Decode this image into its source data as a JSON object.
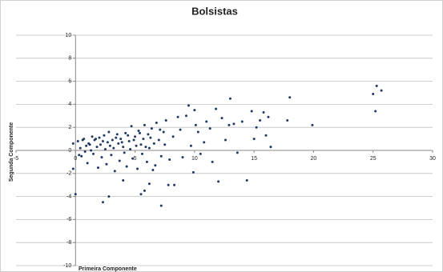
{
  "chart_data": {
    "type": "scatter",
    "title": "Bolsistas",
    "x_label": "Primeira Componente",
    "y_label": "Segunda Componente",
    "color": "#1f3864",
    "xlim": [
      -5,
      30
    ],
    "xticks": [
      -5,
      0,
      5,
      10,
      15,
      20,
      25,
      30
    ],
    "ylim": [
      -10,
      10
    ],
    "yticks": [
      -10,
      -8,
      -6,
      -4,
      -2,
      0,
      2,
      4,
      6,
      8,
      10
    ],
    "grid": true,
    "x": [
      0.2,
      0.4,
      0.5,
      0.7,
      0.9,
      1.0,
      1.1,
      1.3,
      1.4,
      1.5,
      1.6,
      1.8,
      1.9,
      2.0,
      2.1,
      2.2,
      2.4,
      2.5,
      2.6,
      2.7,
      2.8,
      3.0,
      3.1,
      3.2,
      3.3,
      3.5,
      3.6,
      3.7,
      3.8,
      4.0,
      4.1,
      4.2,
      4.3,
      4.5,
      4.6,
      4.7,
      4.8,
      5.0,
      5.1,
      5.2,
      5.3,
      5.5,
      5.6,
      5.7,
      5.8,
      6.0,
      6.1,
      6.2,
      6.4,
      6.5,
      6.6,
      6.8,
      7.0,
      7.2,
      7.4,
      7.6,
      0.3,
      0.6,
      0.8,
      1.2,
      1.7,
      2.3,
      2.9,
      3.4,
      3.9,
      4.4,
      4.9,
      5.4,
      5.9,
      6.3,
      6.7,
      7.1,
      7.5,
      7.9,
      8.2,
      8.6,
      8.8,
      9.0,
      9.3,
      9.5,
      9.7,
      9.9,
      10.1,
      10.3,
      10.5,
      10.8,
      11.0,
      11.3,
      11.5,
      11.8,
      12.0,
      12.3,
      12.6,
      12.9,
      13.0,
      13.3,
      13.6,
      14.0,
      14.4,
      14.8,
      15.0,
      15.2,
      15.5,
      15.8,
      16.0,
      16.2,
      16.4,
      25.3,
      25.7,
      25.0,
      25.2,
      18.0,
      19.9,
      17.8,
      0.0,
      2.3,
      2.8,
      7.2,
      5.5,
      5.8,
      7.8,
      8.3,
      -0.2,
      -0.2,
      4.0,
      6.2,
      10.0
    ],
    "y": [
      0.8,
      0.2,
      -0.5,
      1.0,
      0.4,
      -1.1,
      0.6,
      0.0,
      1.2,
      -0.3,
      0.9,
      0.3,
      -1.5,
      1.1,
      0.5,
      -0.6,
      1.3,
      0.1,
      -1.2,
      0.7,
      1.6,
      -0.4,
      0.9,
      0.2,
      -1.8,
      1.4,
      0.6,
      -0.9,
      1.0,
      0.3,
      -0.2,
      1.5,
      -1.4,
      0.8,
      0.1,
      2.1,
      -0.7,
      1.2,
      0.4,
      -1.6,
      1.7,
      0.5,
      -0.3,
      1.0,
      2.2,
      -1.0,
      1.4,
      0.2,
      1.9,
      -1.7,
      0.6,
      2.4,
      0.9,
      -0.5,
      1.6,
      2.6,
      -0.4,
      0.9,
      -0.1,
      0.5,
      1.0,
      0.8,
      0.4,
      1.1,
      0.7,
      1.3,
      0.9,
      1.5,
      0.3,
      1.1,
      -1.3,
      1.8,
      0.5,
      -0.8,
      1.2,
      2.9,
      1.8,
      -0.6,
      3.0,
      3.9,
      0.4,
      -1.9,
      2.2,
      1.6,
      -0.3,
      0.7,
      2.5,
      1.9,
      -1.0,
      3.6,
      -2.7,
      2.8,
      0.9,
      2.2,
      4.5,
      2.3,
      -0.2,
      2.5,
      -2.6,
      3.4,
      1.0,
      2.0,
      2.6,
      3.3,
      1.3,
      2.9,
      0.3,
      5.6,
      5.2,
      4.9,
      3.4,
      4.6,
      2.2,
      2.6,
      -3.8,
      -4.5,
      -4.0,
      -4.8,
      -3.8,
      -3.5,
      -3.0,
      -3.0,
      -1.6,
      0.6,
      -2.6,
      -2.9,
      3.5
    ]
  }
}
